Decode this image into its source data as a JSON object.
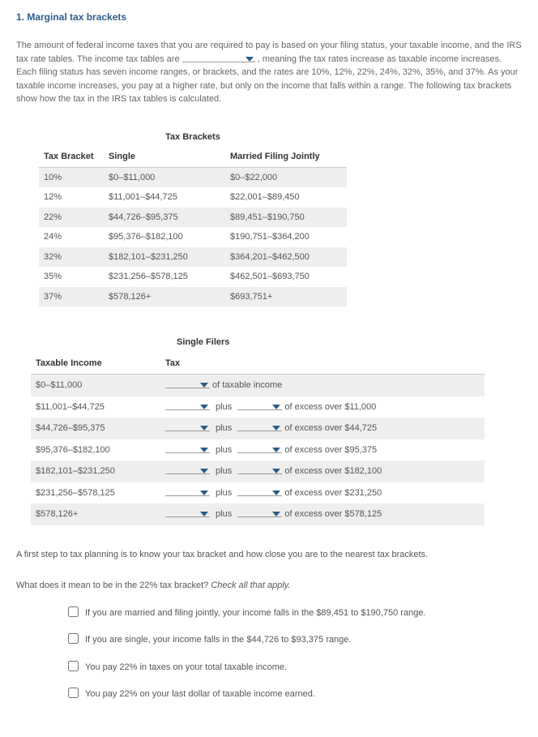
{
  "title": "1. Marginal tax brackets",
  "intro_before": "The amount of federal income taxes that you are required to pay is based on your filing status, your taxable income, and the IRS tax rate tables. The income tax tables are ",
  "intro_after": " , meaning the tax rates increase as taxable income increases. Each filing status has seven income ranges, or brackets, and the rates are 10%, 12%, 22%, 24%, 32%, 35%, and 37%. As your taxable income increases, you pay at a higher rate, but only on the income that falls within a range. The following tax brackets show how the tax in the IRS tax tables is calculated.",
  "brackets": {
    "caption": "Tax Brackets",
    "headers": {
      "rate": "Tax Bracket",
      "single": "Single",
      "mfj": "Married Filing Jointly"
    },
    "rows": [
      {
        "rate": "10%",
        "single": "$0–$11,000",
        "mfj": "$0–$22,000"
      },
      {
        "rate": "12%",
        "single": "$11,001–$44,725",
        "mfj": "$22,001–$89,450"
      },
      {
        "rate": "22%",
        "single": "$44,726–$95,375",
        "mfj": "$89,451–$190,750"
      },
      {
        "rate": "24%",
        "single": "$95,376–$182,100",
        "mfj": "$190,751–$364,200"
      },
      {
        "rate": "32%",
        "single": "$182,101–$231,250",
        "mfj": "$364,201–$462,500"
      },
      {
        "rate": "35%",
        "single": "$231,256–$578,125",
        "mfj": "$462,501–$693,750"
      },
      {
        "rate": "37%",
        "single": "$578,126+",
        "mfj": "$693,751+"
      }
    ]
  },
  "single_filers": {
    "caption": "Single Filers",
    "headers": {
      "income": "Taxable Income",
      "tax": "Tax"
    },
    "rows": [
      {
        "income": "$0–$11,000",
        "after": "of taxable income",
        "has_plus": false
      },
      {
        "income": "$11,001–$44,725",
        "after": "of excess over $11,000",
        "has_plus": true
      },
      {
        "income": "$44,726–$95,375",
        "after": "of excess over $44,725",
        "has_plus": true
      },
      {
        "income": "$95,376–$182,100",
        "after": "of excess over $95,375",
        "has_plus": true
      },
      {
        "income": "$182,101–$231,250",
        "after": "of excess over $182,100",
        "has_plus": true
      },
      {
        "income": "$231,256–$578,125",
        "after": "of excess over $231,250",
        "has_plus": true
      },
      {
        "income": "$578,126+",
        "after": "of excess over $578,125",
        "has_plus": true
      }
    ],
    "plus_word": "plus"
  },
  "para2": "A first step to tax planning is to know your tax bracket and how close you are to the nearest tax brackets.",
  "question_lead": "What does it mean to be in the 22% tax bracket? ",
  "question_em": "Check all that apply.",
  "options": [
    "If you are married and filing jointly, your income falls in the $89,451 to $190,750 range.",
    "If you are single, your income falls in the $44,726 to $93,375 range.",
    "You pay 22% in taxes on your total taxable income.",
    "You pay 22% on your last dollar of taxable income earned."
  ],
  "colors": {
    "dropdown_arrow": "#2a5c8a"
  }
}
